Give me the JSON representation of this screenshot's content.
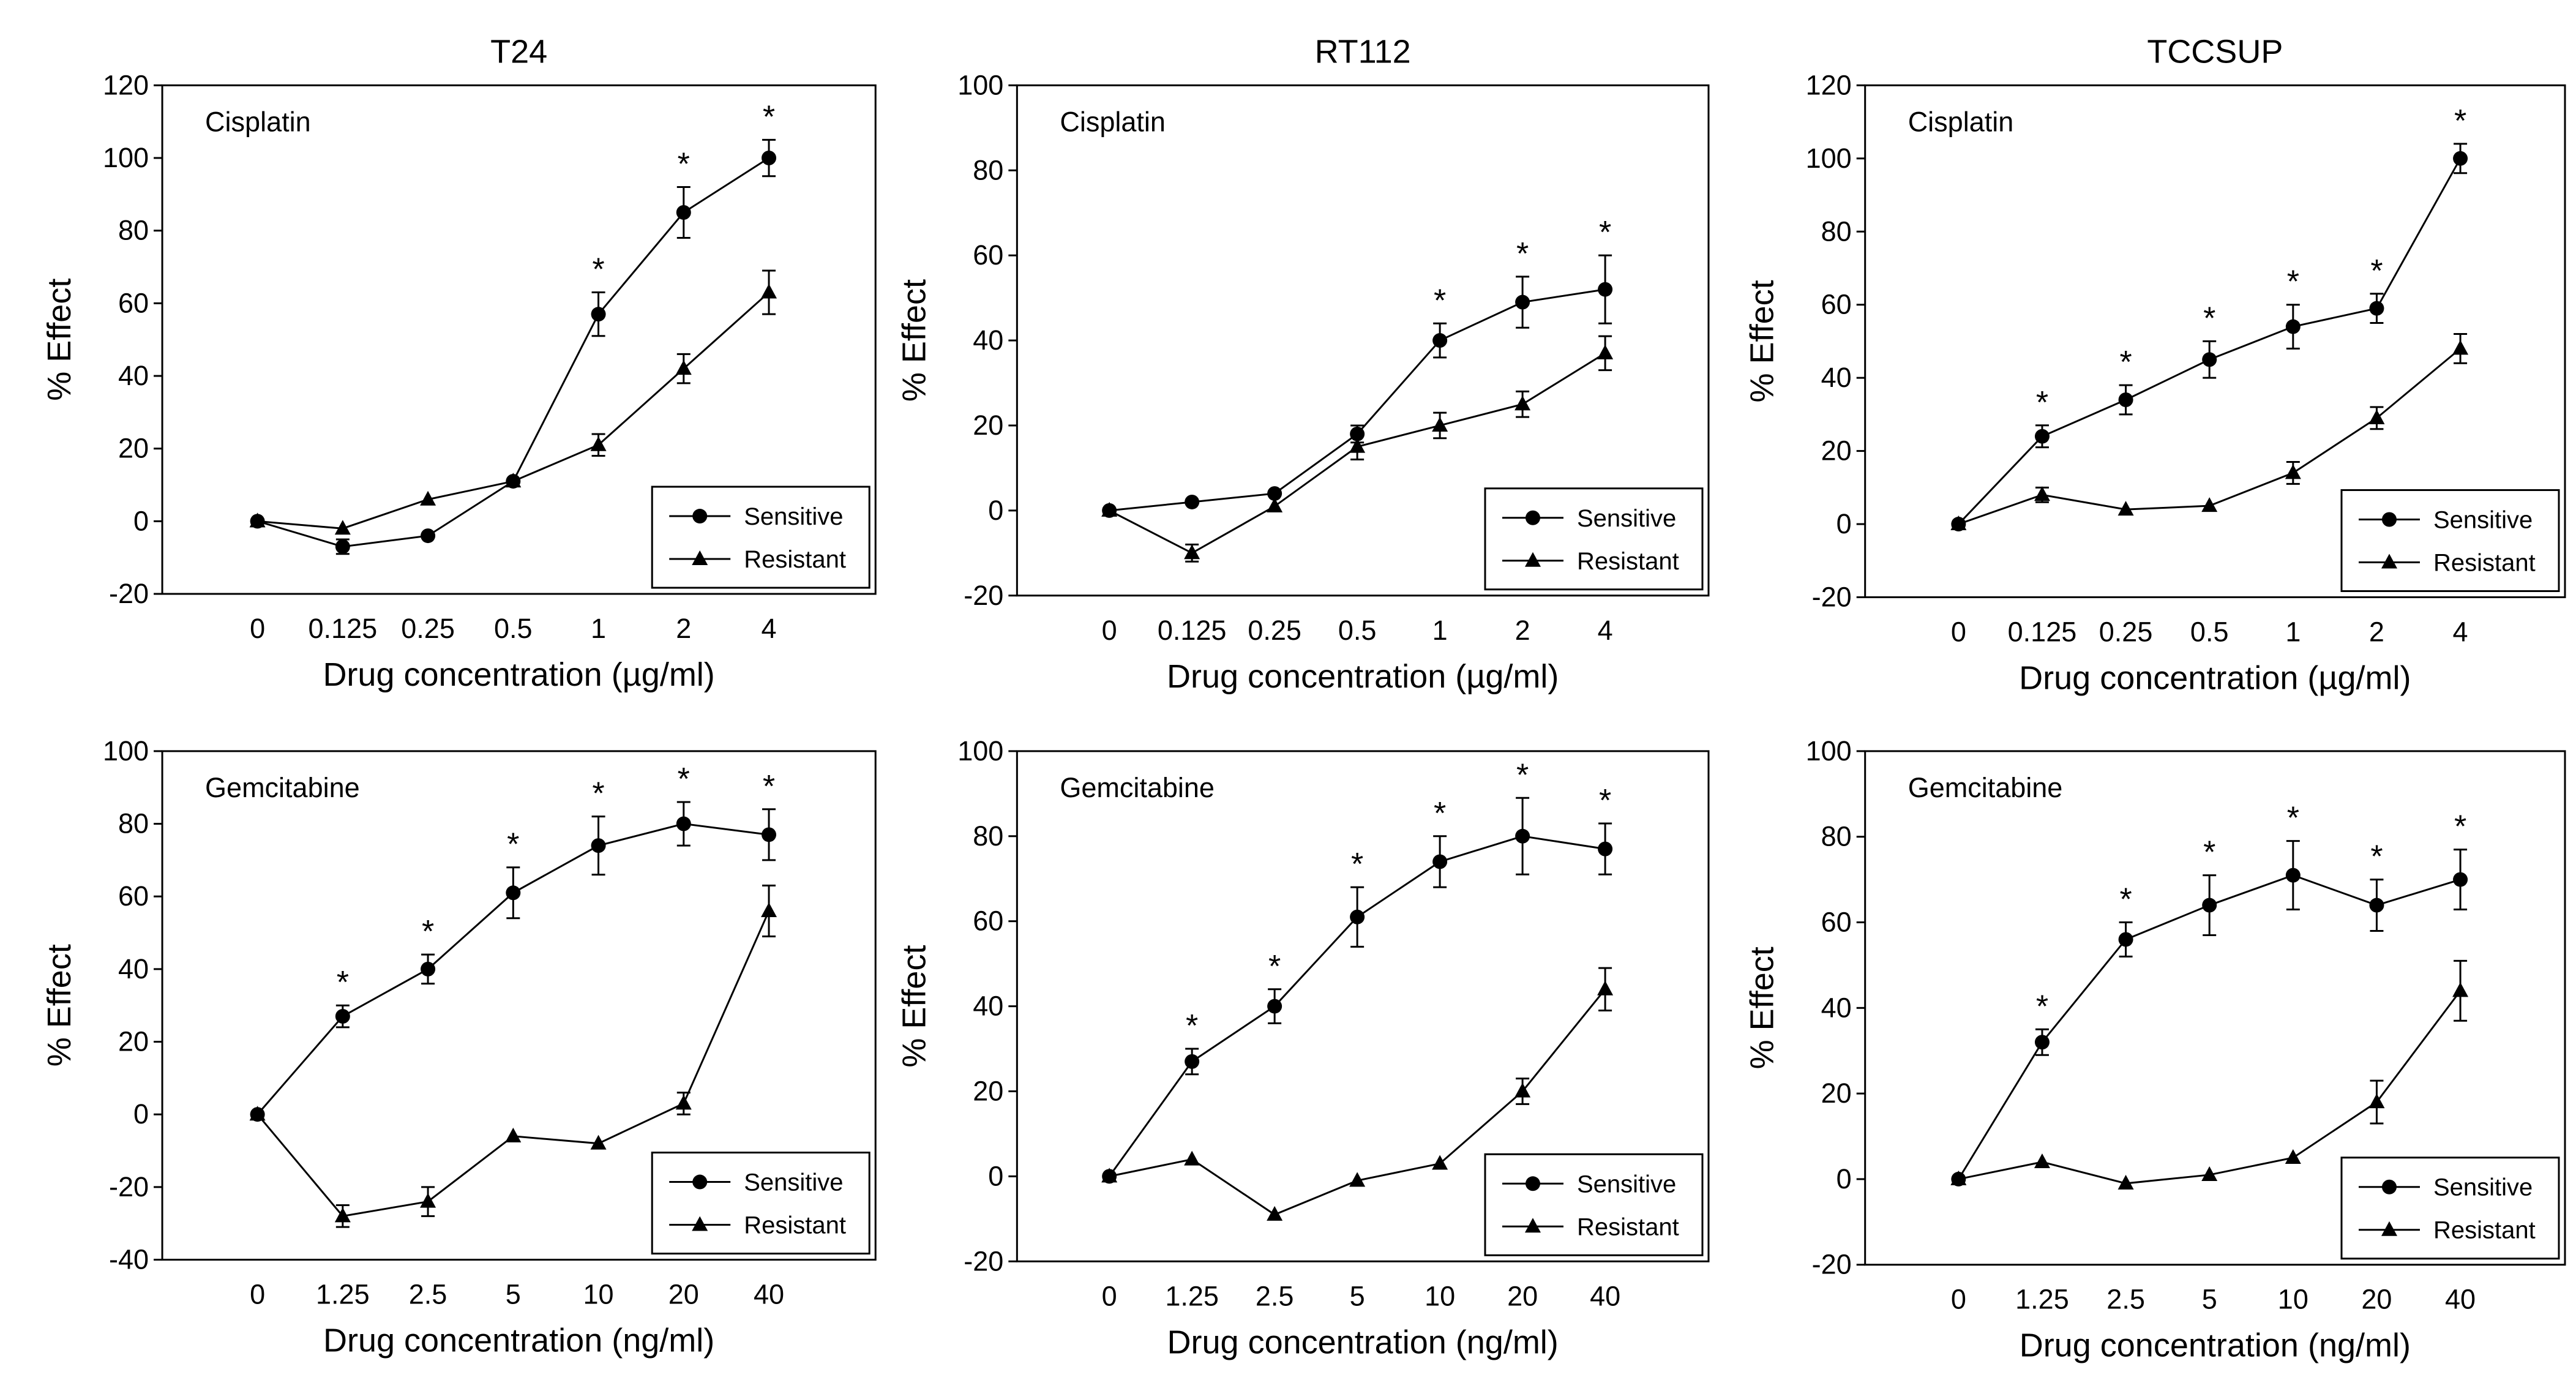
{
  "chart_data": [
    {
      "type": "line",
      "title": "T24",
      "annotation": "Cisplatin",
      "categories": [
        "0",
        "0.125",
        "0.25",
        "0.5",
        "1",
        "2",
        "4"
      ],
      "xlabel": "Drug concentration (µg/ml)",
      "ylabel": "% Effect",
      "ylim": [
        -20,
        120
      ],
      "yticks": [
        -20,
        0,
        20,
        40,
        60,
        80,
        100,
        120
      ],
      "legend_position": "bottom-right",
      "series": [
        {
          "name": "Sensitive",
          "marker": "circle",
          "values": [
            0,
            -7,
            -4,
            11,
            57,
            85,
            100
          ],
          "errors": [
            0,
            2,
            0,
            0,
            6,
            7,
            5
          ]
        },
        {
          "name": "Resistant",
          "marker": "triangle",
          "values": [
            0,
            -2,
            6,
            11,
            21,
            42,
            63
          ],
          "errors": [
            0,
            0,
            0,
            0,
            3,
            4,
            6
          ]
        }
      ],
      "significance": [
        false,
        false,
        false,
        false,
        true,
        true,
        true
      ],
      "significance_label": "*"
    },
    {
      "type": "line",
      "title": "RT112",
      "annotation": "Cisplatin",
      "categories": [
        "0",
        "0.125",
        "0.25",
        "0.5",
        "1",
        "2",
        "4"
      ],
      "xlabel": "Drug concentration (µg/ml)",
      "ylabel": "% Effect",
      "ylim": [
        -20,
        100
      ],
      "yticks": [
        -20,
        0,
        20,
        40,
        60,
        80,
        100
      ],
      "legend_position": "bottom-right",
      "series": [
        {
          "name": "Sensitive",
          "marker": "circle",
          "values": [
            0,
            2,
            4,
            18,
            40,
            49,
            52
          ],
          "errors": [
            0,
            0,
            0,
            2,
            4,
            6,
            8
          ]
        },
        {
          "name": "Resistant",
          "marker": "triangle",
          "values": [
            0,
            -10,
            1,
            15,
            20,
            25,
            37
          ],
          "errors": [
            0,
            2,
            0,
            3,
            3,
            3,
            4
          ]
        }
      ],
      "significance": [
        false,
        false,
        false,
        false,
        true,
        true,
        true
      ],
      "significance_label": "*"
    },
    {
      "type": "line",
      "title": "TCCSUP",
      "annotation": "Cisplatin",
      "categories": [
        "0",
        "0.125",
        "0.25",
        "0.5",
        "1",
        "2",
        "4"
      ],
      "xlabel": "Drug concentration (µg/ml)",
      "ylabel": "% Effect",
      "ylim": [
        -20,
        120
      ],
      "yticks": [
        -20,
        0,
        20,
        40,
        60,
        80,
        100,
        120
      ],
      "legend_position": "bottom-right",
      "series": [
        {
          "name": "Sensitive",
          "marker": "circle",
          "values": [
            0,
            24,
            34,
            45,
            54,
            59,
            100
          ],
          "errors": [
            0,
            3,
            4,
            5,
            6,
            4,
            4
          ]
        },
        {
          "name": "Resistant",
          "marker": "triangle",
          "values": [
            0,
            8,
            4,
            5,
            14,
            29,
            48
          ],
          "errors": [
            0,
            2,
            0,
            0,
            3,
            3,
            4
          ]
        }
      ],
      "significance": [
        false,
        true,
        true,
        true,
        true,
        true,
        true
      ],
      "significance_label": "*"
    },
    {
      "type": "line",
      "title": "",
      "annotation": "Gemcitabine",
      "categories": [
        "0",
        "1.25",
        "2.5",
        "5",
        "10",
        "20",
        "40"
      ],
      "xlabel": "Drug concentration (ng/ml)",
      "ylabel": "% Effect",
      "ylim": [
        -40,
        100
      ],
      "yticks": [
        -40,
        -20,
        0,
        20,
        40,
        60,
        80,
        100
      ],
      "legend_position": "bottom-right",
      "series": [
        {
          "name": "Sensitive",
          "marker": "circle",
          "values": [
            0,
            27,
            40,
            61,
            74,
            80,
            77
          ],
          "errors": [
            0,
            3,
            4,
            7,
            8,
            6,
            7
          ]
        },
        {
          "name": "Resistant",
          "marker": "triangle",
          "values": [
            0,
            -28,
            -24,
            -6,
            -8,
            3,
            56
          ],
          "errors": [
            0,
            3,
            4,
            0,
            0,
            3,
            7
          ]
        }
      ],
      "significance": [
        false,
        true,
        true,
        true,
        true,
        true,
        true
      ],
      "significance_label": "*"
    },
    {
      "type": "line",
      "title": "",
      "annotation": "Gemcitabine",
      "categories": [
        "0",
        "1.25",
        "2.5",
        "5",
        "10",
        "20",
        "40"
      ],
      "xlabel": "Drug concentration (ng/ml)",
      "ylabel": "% Effect",
      "ylim": [
        -20,
        100
      ],
      "yticks": [
        -20,
        0,
        20,
        40,
        60,
        80,
        100
      ],
      "legend_position": "bottom-right",
      "series": [
        {
          "name": "Sensitive",
          "marker": "circle",
          "values": [
            0,
            27,
            40,
            61,
            74,
            80,
            77
          ],
          "errors": [
            0,
            3,
            4,
            7,
            6,
            9,
            6
          ]
        },
        {
          "name": "Resistant",
          "marker": "triangle",
          "values": [
            0,
            4,
            -9,
            -1,
            3,
            20,
            44
          ],
          "errors": [
            0,
            0,
            0,
            0,
            0,
            3,
            5
          ]
        }
      ],
      "significance": [
        false,
        true,
        true,
        true,
        true,
        true,
        true
      ],
      "significance_label": "*"
    },
    {
      "type": "line",
      "title": "",
      "annotation": "Gemcitabine",
      "categories": [
        "0",
        "1.25",
        "2.5",
        "5",
        "10",
        "20",
        "40"
      ],
      "xlabel": "Drug concentration (ng/ml)",
      "ylabel": "% Effect",
      "ylim": [
        -20,
        100
      ],
      "yticks": [
        -20,
        0,
        20,
        40,
        60,
        80,
        100
      ],
      "legend_position": "bottom-right",
      "series": [
        {
          "name": "Sensitive",
          "marker": "circle",
          "values": [
            0,
            32,
            56,
            64,
            71,
            64,
            70
          ],
          "errors": [
            0,
            3,
            4,
            7,
            8,
            6,
            7
          ]
        },
        {
          "name": "Resistant",
          "marker": "triangle",
          "values": [
            0,
            4,
            -1,
            1,
            5,
            18,
            44
          ],
          "errors": [
            0,
            0,
            0,
            0,
            0,
            5,
            7
          ]
        }
      ],
      "significance": [
        false,
        true,
        true,
        true,
        true,
        true,
        true
      ],
      "significance_label": "*"
    }
  ]
}
